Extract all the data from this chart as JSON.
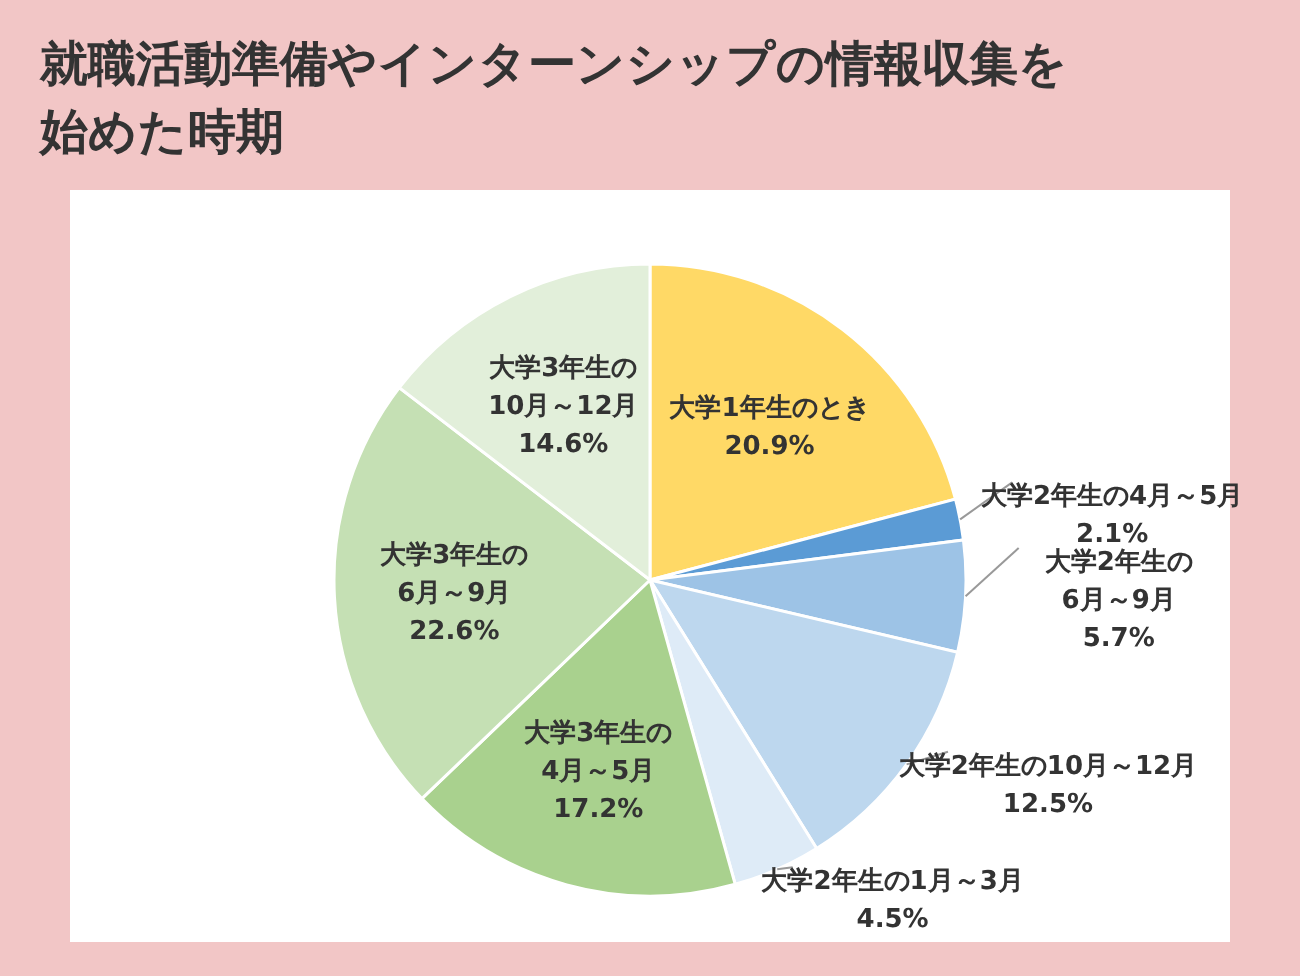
{
  "chart_data": {
    "type": "pie",
    "title": "就職活動準備やインターンシップの情報収集を始めた時期",
    "categories": [
      "大学1年生のとき",
      "大学2年生の4月～5月",
      "大学2年生の\n6月～9月",
      "大学2年生の10月～12月",
      "大学2年生の1月～3月",
      "大学3年生の\n4月～5月",
      "大学3年生の\n6月～9月",
      "大学3年生の\n10月～12月"
    ],
    "values": [
      20.9,
      2.1,
      5.7,
      12.5,
      4.5,
      17.2,
      22.6,
      14.6
    ],
    "colors": [
      "#ffd966",
      "#5b9bd5",
      "#9dc3e6",
      "#bdd7ee",
      "#deebf7",
      "#a9d18e",
      "#c5e0b4",
      "#e2efda"
    ],
    "value_labels": [
      "20.9%",
      "2.1%",
      "5.7%",
      "12.5%",
      "4.5%",
      "17.2%",
      "22.6%",
      "14.6%"
    ]
  }
}
